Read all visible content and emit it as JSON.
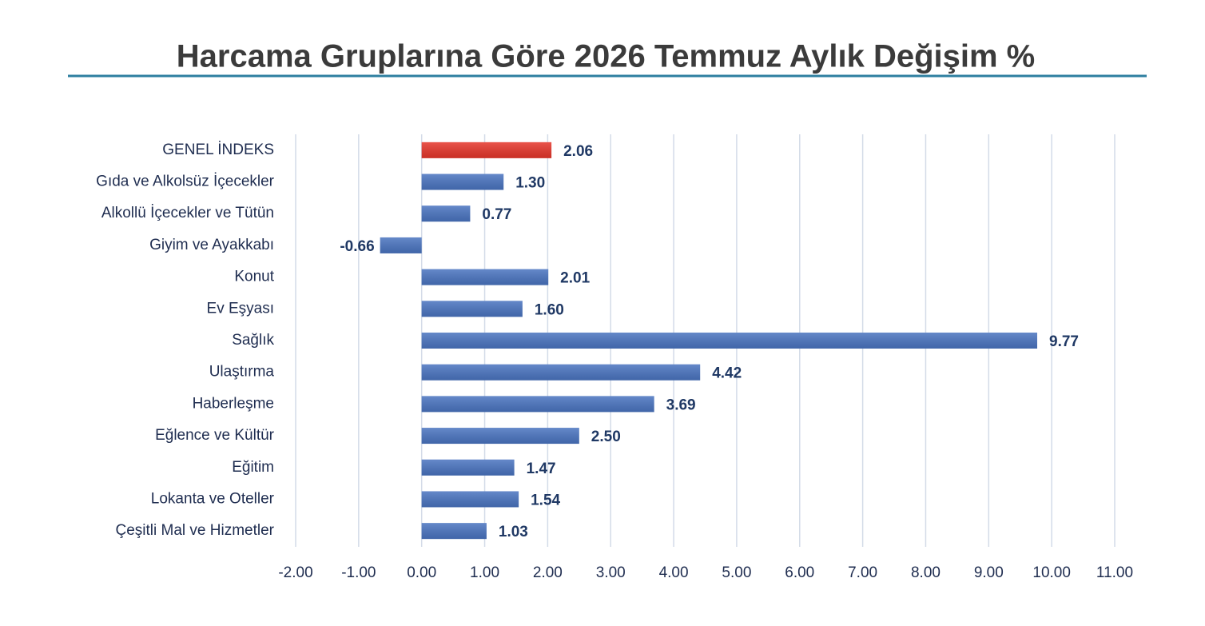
{
  "chart_data": {
    "type": "bar",
    "orientation": "horizontal",
    "title": "Harcama Gruplarına Göre 2026 Temmuz Aylık Değişim %",
    "categories": [
      "GENEL İNDEKS",
      "Gıda ve Alkolsüz İçecekler",
      "Alkollü İçecekler ve Tütün",
      "Giyim ve Ayakkabı",
      "Konut",
      "Ev Eşyası",
      "Sağlık",
      "Ulaştırma",
      "Haberleşme",
      "Eğlence ve Kültür",
      "Eğitim",
      "Lokanta ve Oteller",
      "Çeşitli Mal ve Hizmetler"
    ],
    "values": [
      2.06,
      1.3,
      0.77,
      -0.66,
      2.01,
      1.6,
      9.77,
      4.42,
      3.69,
      2.5,
      1.47,
      1.54,
      1.03
    ],
    "value_labels": [
      "2.06",
      "1.30",
      "0.77",
      "-0.66",
      "2.01",
      "1.60",
      "9.77",
      "4.42",
      "3.69",
      "2.50",
      "1.47",
      "1.54",
      "1.03"
    ],
    "colors": [
      "#e5362b",
      "#4a74c0",
      "#4a74c0",
      "#4a74c0",
      "#4a74c0",
      "#4a74c0",
      "#4a74c0",
      "#4a74c0",
      "#4a74c0",
      "#4a74c0",
      "#4a74c0",
      "#4a74c0",
      "#4a74c0"
    ],
    "xlim": [
      -2,
      11
    ],
    "xticks": [
      {
        "value": -2,
        "label": "-2.00"
      },
      {
        "value": -1,
        "label": "-1.00"
      },
      {
        "value": 0,
        "label": "0.00"
      },
      {
        "value": 1,
        "label": "1.00"
      },
      {
        "value": 2,
        "label": "2.00"
      },
      {
        "value": 3,
        "label": "3.00"
      },
      {
        "value": 4,
        "label": "4.00"
      },
      {
        "value": 5,
        "label": "5.00"
      },
      {
        "value": 6,
        "label": "6.00"
      },
      {
        "value": 7,
        "label": "7.00"
      },
      {
        "value": 8,
        "label": "8.00"
      },
      {
        "value": 9,
        "label": "9.00"
      },
      {
        "value": 10,
        "label": "10.00"
      },
      {
        "value": 11,
        "label": "11.00"
      }
    ],
    "grid": true
  }
}
